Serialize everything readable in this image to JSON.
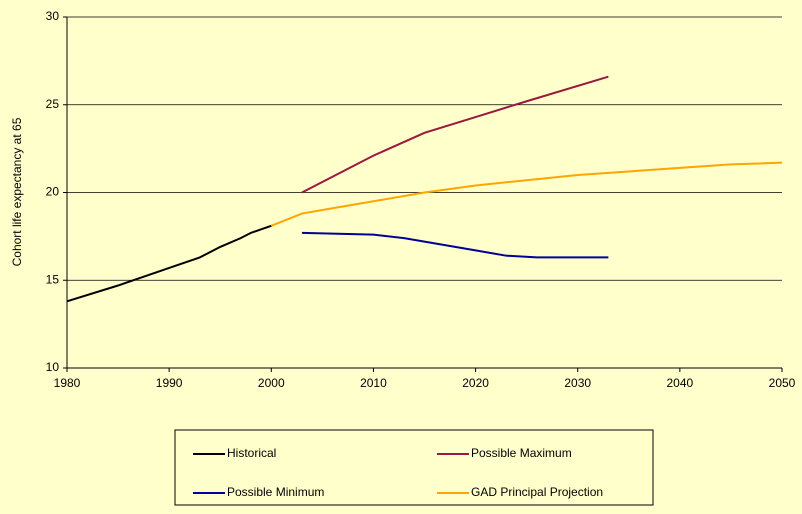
{
  "chart_data": {
    "type": "line",
    "y_label": "Cohort life expectancy at 65",
    "xlim": [
      1980,
      2050
    ],
    "xticks": [
      1980,
      1990,
      2000,
      2010,
      2020,
      2030,
      2040,
      2050
    ],
    "ylim": [
      10,
      30
    ],
    "yticks": [
      10,
      15,
      20,
      25,
      30
    ],
    "grid": true,
    "legend": "bottom",
    "series": [
      {
        "name": "Historical",
        "color": "#000000",
        "x": [
          1980,
          1985,
          1990,
          1993,
          1995,
          1997,
          1998,
          2000
        ],
        "values": [
          13.8,
          14.7,
          15.7,
          16.3,
          16.9,
          17.4,
          17.7,
          18.1
        ]
      },
      {
        "name": "Possible Maximum",
        "color": "#99183d",
        "x": [
          2003,
          2010,
          2015,
          2020,
          2025,
          2033
        ],
        "values": [
          20.0,
          22.1,
          23.4,
          24.3,
          25.2,
          26.6
        ]
      },
      {
        "name": "Possible Minimum",
        "color": "#000099",
        "x": [
          2003,
          2010,
          2013,
          2016,
          2020,
          2023,
          2026,
          2033
        ],
        "values": [
          17.7,
          17.6,
          17.4,
          17.1,
          16.7,
          16.4,
          16.3,
          16.3
        ]
      },
      {
        "name": "GAD Principal Projection",
        "color": "#ffa500",
        "x": [
          2000,
          2003,
          2006,
          2010,
          2015,
          2020,
          2025,
          2030,
          2035,
          2040,
          2045,
          2050
        ],
        "values": [
          18.1,
          18.8,
          19.1,
          19.5,
          20.0,
          20.4,
          20.7,
          21.0,
          21.2,
          21.4,
          21.6,
          21.7
        ]
      }
    ]
  }
}
